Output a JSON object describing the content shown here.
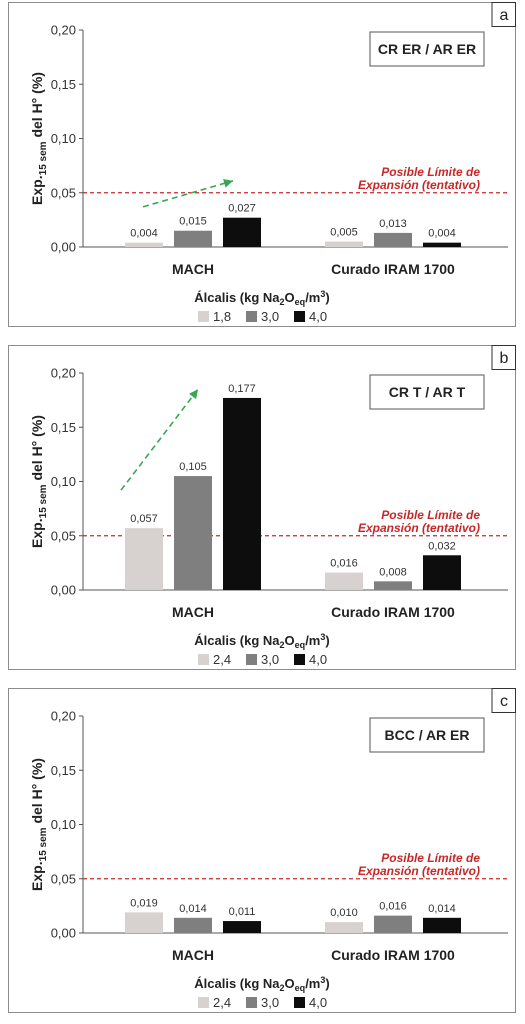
{
  "chart_data": [
    {
      "type": "bar",
      "panel_letter": "a",
      "box_label": "CR ER / AR ER",
      "ylabel": {
        "main": "Exp.",
        "sub": "15 sem",
        "tail": " del H° (%)"
      },
      "ylim": [
        0,
        0.2
      ],
      "yticks": [
        "0,00",
        "0,05",
        "0,10",
        "0,15",
        "0,20"
      ],
      "categories": [
        "MACH",
        "Curado IRAM 1700"
      ],
      "series": [
        {
          "name": "1,8",
          "color": "#d7d2cf",
          "values": [
            0.004,
            0.005
          ],
          "labels": [
            "0,004",
            "0,005"
          ]
        },
        {
          "name": "3,0",
          "color": "#7f7f7f",
          "values": [
            0.015,
            0.013
          ],
          "labels": [
            "0,015",
            "0,013"
          ]
        },
        {
          "name": "4,0",
          "color": "#0d0d0d",
          "values": [
            0.027,
            0.004
          ],
          "labels": [
            "0,027",
            "0,004"
          ]
        }
      ],
      "limit": {
        "value": 0.05,
        "line1": "Posible Límite de",
        "line2": "Expansión (tentativo)"
      },
      "legend": {
        "title_pre": "Álcalis (kg Na",
        "title_s1": "2",
        "title_mid": "O",
        "title_s2": "eq",
        "title_post": "/m",
        "title_sup": "3",
        "title_end": ")"
      },
      "arrow": {
        "from": [
          0.3,
          0.037
        ],
        "to": [
          0.7,
          0.061
        ]
      }
    },
    {
      "type": "bar",
      "panel_letter": "b",
      "box_label": "CR T / AR T",
      "ylabel": {
        "main": "Exp.",
        "sub": "15 sem",
        "tail": " del H° (%)"
      },
      "ylim": [
        0,
        0.2
      ],
      "yticks": [
        "0,00",
        "0,05",
        "0,10",
        "0,15",
        "0,20"
      ],
      "categories": [
        "MACH",
        "Curado IRAM 1700"
      ],
      "series": [
        {
          "name": "2,4",
          "color": "#d7d2cf",
          "values": [
            0.057,
            0.016
          ],
          "labels": [
            "0,057",
            "0,016"
          ]
        },
        {
          "name": "3,0",
          "color": "#7f7f7f",
          "values": [
            0.105,
            0.008
          ],
          "labels": [
            "0,105",
            "0,008"
          ]
        },
        {
          "name": "4,0",
          "color": "#0d0d0d",
          "values": [
            0.177,
            0.032
          ],
          "labels": [
            "0,177",
            "0,032"
          ]
        }
      ],
      "limit": {
        "value": 0.05,
        "line1": "Posible Límite de",
        "line2": "Expansión (tentativo)"
      },
      "legend": {
        "title_pre": "Álcalis (kg Na",
        "title_s1": "2",
        "title_mid": "O",
        "title_s2": "eq",
        "title_post": "/m",
        "title_sup": "3",
        "title_end": ")"
      },
      "arrow": {
        "from": [
          0.3,
          0.092
        ],
        "to": [
          0.6,
          0.185
        ]
      }
    },
    {
      "type": "bar",
      "panel_letter": "c",
      "box_label": "BCC / AR ER",
      "ylabel": {
        "main": "Exp.",
        "sub": "15 sem",
        "tail": " del H° (%)"
      },
      "ylim": [
        0,
        0.2
      ],
      "yticks": [
        "0,00",
        "0,05",
        "0,10",
        "0,15",
        "0,20"
      ],
      "categories": [
        "MACH",
        "Curado IRAM 1700"
      ],
      "series": [
        {
          "name": "2,4",
          "color": "#d7d2cf",
          "values": [
            0.019,
            0.01
          ],
          "labels": [
            "0,019",
            "0,010"
          ]
        },
        {
          "name": "3,0",
          "color": "#7f7f7f",
          "values": [
            0.014,
            0.016
          ],
          "labels": [
            "0,014",
            "0,016"
          ]
        },
        {
          "name": "4,0",
          "color": "#0d0d0d",
          "values": [
            0.011,
            0.014
          ],
          "labels": [
            "0,011",
            "0,014"
          ]
        }
      ],
      "limit": {
        "value": 0.05,
        "line1": "Posible Límite de",
        "line2": "Expansión (tentativo)"
      },
      "legend": {
        "title_pre": "Álcalis (kg Na",
        "title_s1": "2",
        "title_mid": "O",
        "title_s2": "eq",
        "title_post": "/m",
        "title_sup": "3",
        "title_end": ")"
      },
      "arrow": null
    }
  ]
}
